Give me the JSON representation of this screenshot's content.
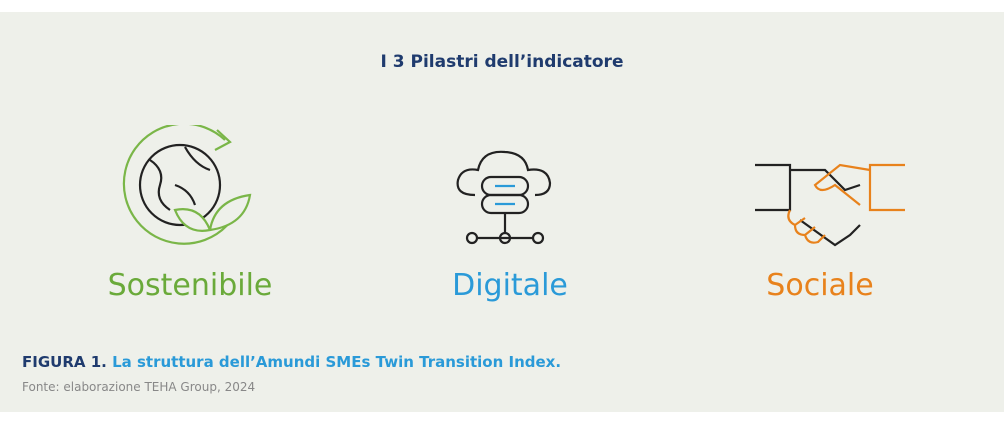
{
  "title": "I 3 Pilastri dell’indicatore",
  "pillars": [
    {
      "label": "Sostenibile"
    },
    {
      "label": "Digitale"
    },
    {
      "label": "Sociale"
    }
  ],
  "caption": {
    "figure": "FIGURA 1.",
    "text": "La struttura dell’Amundi SMEs Twin Transition Index.",
    "source": "Fonte: elaborazione TEHA Group, 2024"
  }
}
